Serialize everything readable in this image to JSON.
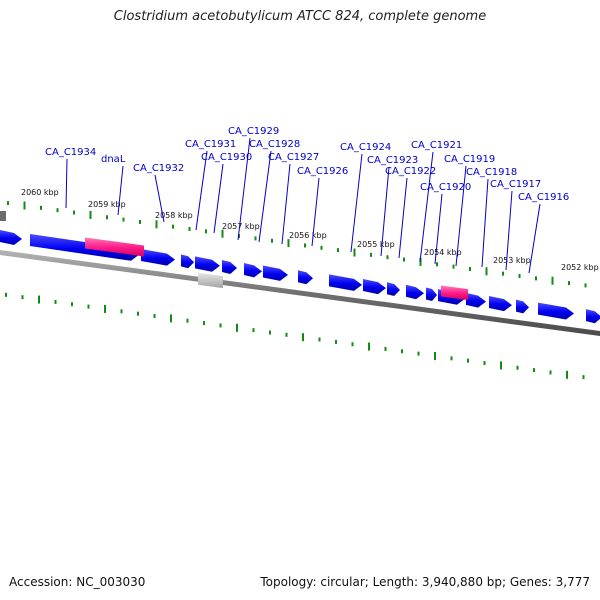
{
  "title": "Clostridium acetobutylicum ATCC 824, complete genome",
  "footer": {
    "accession": "Accession: NC_003030",
    "summary": "Topology: circular; Length: 3,940,880 bp; Genes: 3,777"
  },
  "colors": {
    "gene_forward": "#0000ff",
    "rna": "#ff1f8a",
    "pseudogene": "#bcbcbc",
    "backbone": "#7a7a7a",
    "tick": "#138a13",
    "label": "#0000cc"
  },
  "kbp_ticks": [
    "2060 kbp",
    "2059 kbp",
    "2058 kbp",
    "2057 kbp",
    "2056 kbp",
    "2055 kbp",
    "2054 kbp",
    "2053 kbp",
    "2052 kbp"
  ],
  "gene_labels": [
    "CA_C1934",
    "dnaL",
    "CA_C1932",
    "CA_C1931",
    "CA_C1930",
    "CA_C1929",
    "CA_C1928",
    "CA_C1927",
    "CA_C1926",
    "CA_C1924",
    "CA_C1923",
    "CA_C1922",
    "CA_C1921",
    "CA_C1920",
    "CA_C1919",
    "CA_C1918",
    "CA_C1917",
    "CA_C1916"
  ]
}
